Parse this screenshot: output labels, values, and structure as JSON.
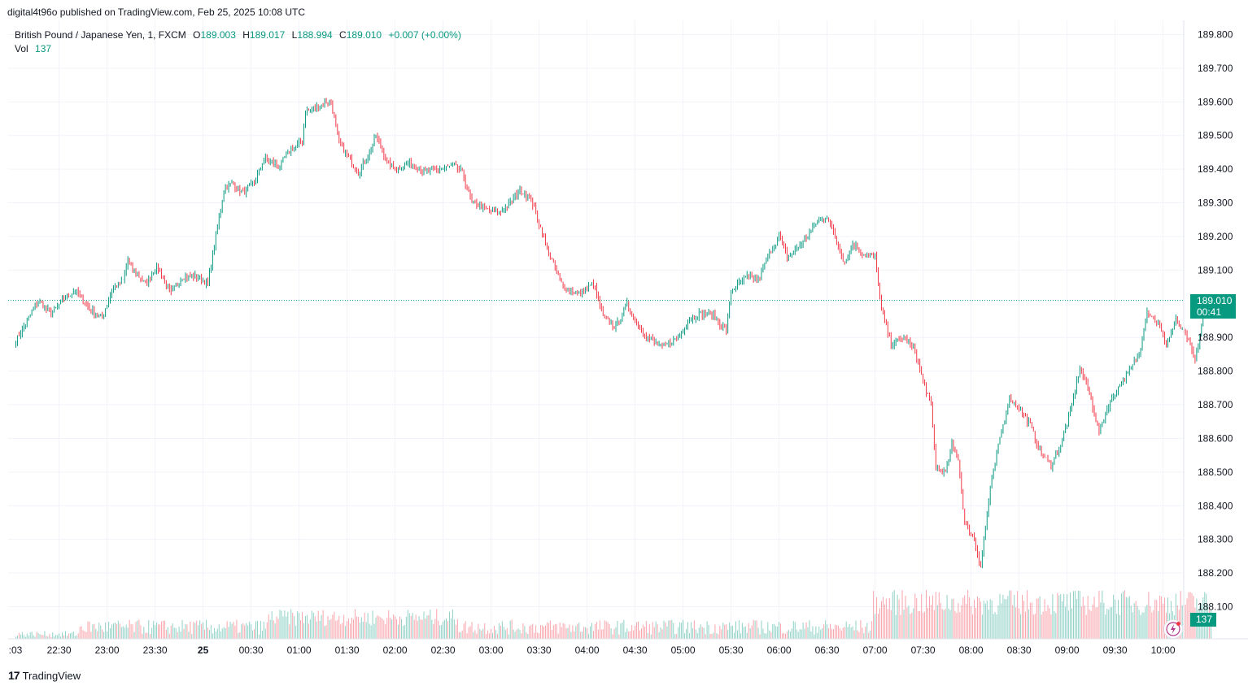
{
  "header": {
    "published_text": "digital4t96o published on TradingView.com, Feb 25, 2025 10:08 UTC"
  },
  "legend": {
    "symbol": "British Pound / Japanese Yen, 1, FXCM",
    "open_label": "O",
    "open": "189.003",
    "high_label": "H",
    "high": "189.017",
    "low_label": "L",
    "low": "188.994",
    "close_label": "C",
    "close": "189.010",
    "change": "+0.007 (+0.00%)",
    "vol_label": "Vol",
    "vol": "137"
  },
  "price_tag": {
    "price": "189.010",
    "countdown": "00:41"
  },
  "volume_tag": "137",
  "footer": {
    "logo_text": "TradingView"
  },
  "colors": {
    "up": "#089981",
    "down": "#f23645",
    "grid": "#f0f3fa",
    "axis_text": "#131722",
    "last_line": "#089981"
  },
  "icons": {
    "logo": "tradingview-logo-icon",
    "lightning": "lightning-icon"
  },
  "chart_data": {
    "type": "candlestick",
    "title": "",
    "xlabel": "",
    "ylabel": "",
    "ylim": [
      188.0,
      189.8
    ],
    "y_ticks": [
      "189.800",
      "189.700",
      "189.600",
      "189.500",
      "189.400",
      "189.300",
      "189.200",
      "189.100",
      "188.900",
      "188.800",
      "188.700",
      "188.600",
      "188.500",
      "188.400",
      "188.300",
      "188.200",
      "188.100"
    ],
    "x_ticks": [
      ":03",
      "22:30",
      "23:00",
      "23:30",
      "25",
      "00:30",
      "01:00",
      "01:30",
      "02:00",
      "02:30",
      "03:00",
      "03:30",
      "04:00",
      "04:30",
      "05:00",
      "05:30",
      "06:00",
      "06:30",
      "07:00",
      "07:30",
      "08:00",
      "08:30",
      "09:00",
      "09:30",
      "10:00"
    ],
    "last_price": 189.01,
    "grid": true,
    "close_path": [
      [
        "22:03",
        188.89
      ],
      [
        "22:10",
        188.95
      ],
      [
        "22:17",
        189.01
      ],
      [
        "22:25",
        188.97
      ],
      [
        "22:32",
        189.01
      ],
      [
        "22:40",
        189.04
      ],
      [
        "22:50",
        188.98
      ],
      [
        "22:57",
        188.96
      ],
      [
        "23:03",
        189.04
      ],
      [
        "23:10",
        189.07
      ],
      [
        "23:13",
        189.13
      ],
      [
        "23:16",
        189.1
      ],
      [
        "23:24",
        189.06
      ],
      [
        "23:31",
        189.11
      ],
      [
        "23:40",
        189.03
      ],
      [
        "23:47",
        189.08
      ],
      [
        "23:57",
        189.08
      ],
      [
        "24:03",
        189.06
      ],
      [
        "24:08",
        189.2
      ],
      [
        "24:13",
        189.34
      ],
      [
        "24:18",
        189.36
      ],
      [
        "24:25",
        189.33
      ],
      [
        "24:32",
        189.36
      ],
      [
        "24:38",
        189.43
      ],
      [
        "24:48",
        189.41
      ],
      [
        "24:55",
        189.46
      ],
      [
        "25:02",
        189.48
      ],
      [
        "25:04",
        189.57
      ],
      [
        "25:10",
        189.58
      ],
      [
        "25:17",
        189.6
      ],
      [
        "25:20",
        189.6
      ],
      [
        "25:25",
        189.48
      ],
      [
        "25:30",
        189.44
      ],
      [
        "25:37",
        189.39
      ],
      [
        "25:43",
        189.44
      ],
      [
        "25:48",
        189.5
      ],
      [
        "25:55",
        189.42
      ],
      [
        "26:01",
        189.4
      ],
      [
        "26:10",
        189.42
      ],
      [
        "26:18",
        189.39
      ],
      [
        "26:27",
        189.4
      ],
      [
        "26:37",
        189.41
      ],
      [
        "26:42",
        189.39
      ],
      [
        "26:48",
        189.3
      ],
      [
        "26:58",
        189.28
      ],
      [
        "27:05",
        189.27
      ],
      [
        "27:12",
        189.3
      ],
      [
        "27:18",
        189.34
      ],
      [
        "27:25",
        189.31
      ],
      [
        "27:30",
        189.24
      ],
      [
        "27:36",
        189.15
      ],
      [
        "27:45",
        189.05
      ],
      [
        "27:55",
        189.03
      ],
      [
        "28:04",
        189.06
      ],
      [
        "28:10",
        188.96
      ],
      [
        "28:18",
        188.93
      ],
      [
        "28:25",
        189.0
      ],
      [
        "28:30",
        188.95
      ],
      [
        "28:38",
        188.9
      ],
      [
        "28:47",
        188.87
      ],
      [
        "28:57",
        188.9
      ],
      [
        "29:03",
        188.95
      ],
      [
        "29:10",
        188.97
      ],
      [
        "29:18",
        188.97
      ],
      [
        "29:27",
        188.92
      ],
      [
        "29:30",
        189.04
      ],
      [
        "29:40",
        189.08
      ],
      [
        "29:47",
        189.07
      ],
      [
        "29:54",
        189.15
      ],
      [
        "30:00",
        189.2
      ],
      [
        "30:05",
        189.14
      ],
      [
        "30:10",
        189.16
      ],
      [
        "30:16",
        189.19
      ],
      [
        "30:23",
        189.24
      ],
      [
        "30:30",
        189.26
      ],
      [
        "30:35",
        189.2
      ],
      [
        "30:41",
        189.12
      ],
      [
        "30:46",
        189.18
      ],
      [
        "30:52",
        189.15
      ],
      [
        "31:00",
        189.14
      ],
      [
        "31:04",
        188.98
      ],
      [
        "31:10",
        188.88
      ],
      [
        "31:18",
        188.9
      ],
      [
        "31:25",
        188.86
      ],
      [
        "31:30",
        188.77
      ],
      [
        "31:35",
        188.7
      ],
      [
        "31:38",
        188.51
      ],
      [
        "31:44",
        188.5
      ],
      [
        "31:48",
        188.58
      ],
      [
        "31:52",
        188.54
      ],
      [
        "31:56",
        188.35
      ],
      [
        "32:02",
        188.3
      ],
      [
        "32:06",
        188.22
      ],
      [
        "32:12",
        188.45
      ],
      [
        "32:18",
        188.6
      ],
      [
        "32:24",
        188.72
      ],
      [
        "32:30",
        188.69
      ],
      [
        "32:37",
        188.64
      ],
      [
        "32:43",
        188.56
      ],
      [
        "32:50",
        188.52
      ],
      [
        "32:56",
        188.58
      ],
      [
        "33:02",
        188.68
      ],
      [
        "33:08",
        188.81
      ],
      [
        "33:13",
        188.75
      ],
      [
        "33:20",
        188.62
      ],
      [
        "33:26",
        188.7
      ],
      [
        "33:33",
        188.76
      ],
      [
        "33:39",
        188.8
      ],
      [
        "33:45",
        188.85
      ],
      [
        "33:50",
        188.98
      ],
      [
        "33:57",
        188.94
      ],
      [
        "34:02",
        188.88
      ],
      [
        "34:08",
        188.95
      ],
      [
        "34:15",
        188.9
      ],
      [
        "34:20",
        188.83
      ],
      [
        "34:25",
        188.96
      ],
      [
        "34:30",
        189.01
      ]
    ],
    "volume_range": [
      0,
      160
    ],
    "volume_last": 137
  }
}
